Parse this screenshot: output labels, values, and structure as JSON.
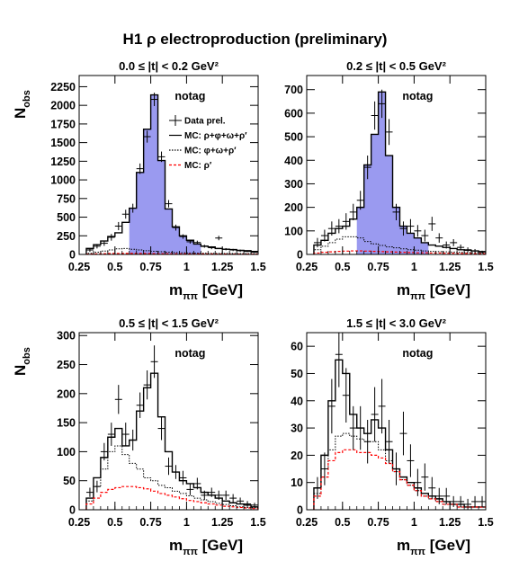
{
  "title": "H1 ρ electroproduction (preliminary)",
  "colors": {
    "fill": "#9a9af0",
    "mc_total": "#000000",
    "mc_bg": "#000000",
    "mc_rhoprime": "#ff0000",
    "data": "#000000"
  },
  "chart_data": [
    {
      "type": "histogram",
      "title": "0.0 ≤ |t| < 0.2 GeV²",
      "tag": "notag",
      "xlabel": "m_ππ [GeV]",
      "ylabel": "N_obs",
      "xlim": [
        0.25,
        1.5
      ],
      "ylim": [
        0,
        2400
      ],
      "xticks": [
        0.25,
        0.5,
        0.75,
        1,
        1.25,
        1.5
      ],
      "xtick_labels": [
        "0.25",
        "0.5",
        "0.75",
        "1",
        "1.25",
        "1.5"
      ],
      "yticks": [
        0,
        250,
        500,
        750,
        1000,
        1250,
        1500,
        1750,
        2000,
        2250
      ],
      "legend": {
        "entries": [
          {
            "label": "Data prel.",
            "style": "cross"
          },
          {
            "label": "MC: ρ+φ+ω+ρ′",
            "style": "solid-black"
          },
          {
            "label": "MC: φ+ω+ρ′",
            "style": "dotted-black"
          },
          {
            "label": "MC: ρ′",
            "style": "dashed-red"
          }
        ]
      },
      "bin_width": 0.05,
      "bin_starts": [
        0.3,
        0.35,
        0.4,
        0.45,
        0.5,
        0.55,
        0.6,
        0.65,
        0.7,
        0.75,
        0.8,
        0.85,
        0.9,
        0.95,
        1.0,
        1.05,
        1.1,
        1.15,
        1.2,
        1.25,
        1.3,
        1.35,
        1.4,
        1.45
      ],
      "series": [
        {
          "name": "MC: ρ+φ+ω+ρ′",
          "role": "total",
          "values": [
            80,
            130,
            180,
            240,
            290,
            430,
            620,
            1100,
            1680,
            2140,
            1260,
            610,
            370,
            250,
            190,
            140,
            110,
            100,
            80,
            70,
            65,
            55,
            50,
            40
          ]
        },
        {
          "name": "MC: φ+ω+ρ′",
          "role": "background",
          "values": [
            15,
            30,
            45,
            60,
            75,
            80,
            70,
            60,
            50,
            42,
            36,
            30,
            26,
            22,
            20,
            18,
            16,
            15,
            14,
            13,
            12,
            11,
            10,
            9
          ]
        },
        {
          "name": "MC: ρ′",
          "role": "rhoprime",
          "values": [
            5,
            8,
            10,
            12,
            13,
            14,
            14,
            13,
            12,
            11,
            10,
            9,
            8,
            8,
            7,
            7,
            6,
            6,
            5,
            5,
            4,
            4,
            3,
            3
          ]
        }
      ],
      "fill_range": [
        0.6,
        1.1
      ],
      "data": {
        "name": "Data prel.",
        "x": [
          0.325,
          0.375,
          0.425,
          0.475,
          0.525,
          0.575,
          0.625,
          0.675,
          0.725,
          0.775,
          0.825,
          0.875,
          0.925,
          0.975,
          1.025,
          1.075,
          1.125,
          1.175,
          1.225,
          1.275,
          1.325,
          1.375,
          1.425,
          1.475
        ],
        "y": [
          60,
          110,
          150,
          230,
          380,
          540,
          620,
          1150,
          1580,
          2080,
          1310,
          680,
          360,
          240,
          170,
          160,
          110,
          90,
          220,
          70,
          60,
          50,
          40,
          30
        ],
        "err": [
          25,
          30,
          35,
          45,
          55,
          60,
          60,
          70,
          80,
          90,
          70,
          50,
          40,
          30,
          25,
          25,
          20,
          20,
          30,
          15,
          15,
          15,
          10,
          10
        ]
      }
    },
    {
      "type": "histogram",
      "title": "0.2 ≤ |t| < 0.5 GeV²",
      "tag": "notag",
      "xlabel": "m_ππ [GeV]",
      "ylabel": "",
      "xlim": [
        0.25,
        1.5
      ],
      "ylim": [
        0,
        760
      ],
      "xticks": [
        0.25,
        0.5,
        0.75,
        1,
        1.25,
        1.5
      ],
      "xtick_labels": [
        "0.25",
        "0.5",
        "0.75",
        "1",
        "1.25",
        "1.5"
      ],
      "yticks": [
        0,
        100,
        200,
        300,
        400,
        500,
        600,
        700
      ],
      "bin_width": 0.05,
      "bin_starts": [
        0.3,
        0.35,
        0.4,
        0.45,
        0.5,
        0.55,
        0.6,
        0.65,
        0.7,
        0.75,
        0.8,
        0.85,
        0.9,
        0.95,
        1.0,
        1.05,
        1.1,
        1.15,
        1.2,
        1.25,
        1.3,
        1.35,
        1.4,
        1.45
      ],
      "series": [
        {
          "name": "MC: ρ+φ+ω+ρ′",
          "role": "total",
          "values": [
            40,
            60,
            90,
            110,
            120,
            150,
            200,
            380,
            510,
            690,
            420,
            200,
            120,
            90,
            70,
            50,
            40,
            35,
            30,
            25,
            20,
            18,
            15,
            12
          ]
        },
        {
          "name": "MC: φ+ω+ρ′",
          "role": "background",
          "values": [
            20,
            35,
            50,
            65,
            75,
            75,
            70,
            55,
            45,
            38,
            32,
            28,
            24,
            20,
            18,
            15,
            13,
            12,
            11,
            10,
            9,
            8,
            7,
            6
          ]
        },
        {
          "name": "MC: ρ′",
          "role": "rhoprime",
          "values": [
            6,
            9,
            11,
            13,
            14,
            15,
            15,
            14,
            13,
            12,
            11,
            10,
            9,
            8,
            7,
            7,
            6,
            6,
            5,
            5,
            4,
            4,
            3,
            3
          ]
        }
      ],
      "fill_range": [
        0.6,
        1.1
      ],
      "data": {
        "name": "Data prel.",
        "x": [
          0.325,
          0.375,
          0.425,
          0.475,
          0.525,
          0.575,
          0.625,
          0.675,
          0.725,
          0.775,
          0.825,
          0.875,
          0.925,
          0.975,
          1.025,
          1.075,
          1.125,
          1.175,
          1.225,
          1.275,
          1.325,
          1.375,
          1.425,
          1.475
        ],
        "y": [
          50,
          80,
          110,
          120,
          140,
          180,
          230,
          370,
          590,
          640,
          520,
          180,
          110,
          120,
          100,
          80,
          130,
          70,
          40,
          50,
          30,
          20,
          15,
          10
        ],
        "err": [
          20,
          25,
          30,
          30,
          35,
          35,
          40,
          50,
          60,
          60,
          55,
          35,
          30,
          30,
          25,
          25,
          30,
          20,
          15,
          15,
          12,
          10,
          8,
          6
        ]
      }
    },
    {
      "type": "histogram",
      "title": "0.5 ≤ |t| < 1.5 GeV²",
      "tag": "notag",
      "xlabel": "m_ππ [GeV]",
      "ylabel": "N_obs",
      "xlim": [
        0.25,
        1.5
      ],
      "ylim": [
        0,
        305
      ],
      "xticks": [
        0.25,
        0.5,
        0.75,
        1,
        1.25,
        1.5
      ],
      "xtick_labels": [
        "0.25",
        "0.5",
        "0.75",
        "1",
        "1.25",
        "1.5"
      ],
      "yticks": [
        0,
        50,
        100,
        150,
        200,
        250,
        300
      ],
      "bin_width": 0.05,
      "bin_starts": [
        0.3,
        0.35,
        0.4,
        0.45,
        0.5,
        0.55,
        0.6,
        0.65,
        0.7,
        0.75,
        0.8,
        0.85,
        0.9,
        0.95,
        1.0,
        1.05,
        1.1,
        1.15,
        1.2,
        1.25,
        1.3,
        1.35,
        1.4,
        1.45
      ],
      "series": [
        {
          "name": "MC: ρ+φ+ω+ρ′",
          "role": "total",
          "values": [
            20,
            55,
            90,
            125,
            140,
            110,
            120,
            170,
            210,
            235,
            160,
            100,
            65,
            50,
            45,
            38,
            30,
            25,
            20,
            15,
            12,
            10,
            8,
            5
          ]
        },
        {
          "name": "MC: φ+ω+ρ′",
          "role": "background",
          "values": [
            15,
            40,
            70,
            100,
            110,
            95,
            80,
            70,
            55,
            50,
            42,
            38,
            32,
            28,
            24,
            20,
            17,
            14,
            11,
            9,
            7,
            5,
            4,
            3
          ]
        },
        {
          "name": "MC: ρ′",
          "role": "rhoprime",
          "values": [
            10,
            20,
            30,
            35,
            38,
            40,
            40,
            38,
            36,
            32,
            28,
            25,
            22,
            19,
            16,
            14,
            12,
            10,
            8,
            6,
            5,
            4,
            3,
            2
          ]
        }
      ],
      "data": {
        "name": "Data prel.",
        "x": [
          0.325,
          0.375,
          0.425,
          0.475,
          0.525,
          0.575,
          0.625,
          0.675,
          0.725,
          0.775,
          0.825,
          0.875,
          0.925,
          0.975,
          1.025,
          1.075,
          1.125,
          1.175,
          1.225,
          1.275,
          1.325,
          1.375,
          1.425,
          1.475
        ],
        "y": [
          30,
          40,
          100,
          130,
          190,
          130,
          120,
          180,
          215,
          255,
          140,
          75,
          65,
          55,
          35,
          45,
          25,
          30,
          25,
          25,
          20,
          15,
          10,
          8
        ],
        "err": [
          8,
          10,
          15,
          20,
          25,
          20,
          18,
          22,
          25,
          28,
          20,
          15,
          12,
          12,
          10,
          10,
          8,
          8,
          8,
          8,
          7,
          6,
          5,
          4
        ]
      }
    },
    {
      "type": "histogram",
      "title": "1.5 ≤ |t| < 3.0 GeV²",
      "tag": "notag",
      "xlabel": "m_ππ [GeV]",
      "ylabel": "",
      "xlim": [
        0.25,
        1.5
      ],
      "ylim": [
        0,
        65
      ],
      "xticks": [
        0.25,
        0.5,
        0.75,
        1,
        1.25,
        1.5
      ],
      "xtick_labels": [
        "0.25",
        "0.5",
        "0.75",
        "1",
        "1.25",
        "1.5"
      ],
      "yticks": [
        0,
        10,
        20,
        30,
        40,
        50,
        60
      ],
      "bin_width": 0.05,
      "bin_starts": [
        0.3,
        0.35,
        0.4,
        0.45,
        0.5,
        0.55,
        0.6,
        0.65,
        0.7,
        0.75,
        0.8,
        0.85,
        0.9,
        0.95,
        1.0,
        1.05,
        1.1,
        1.15,
        1.2,
        1.25,
        1.3,
        1.35,
        1.4,
        1.45
      ],
      "series": [
        {
          "name": "MC: ρ+φ+ω+ρ′",
          "role": "total",
          "values": [
            8,
            20,
            40,
            55,
            50,
            35,
            30,
            28,
            33,
            30,
            22,
            15,
            12,
            10,
            8,
            6,
            5,
            4,
            3,
            2,
            2,
            1,
            1,
            1
          ]
        },
        {
          "name": "MC: φ+ω+ρ′",
          "role": "background",
          "values": [
            6,
            15,
            22,
            27,
            28,
            27,
            26,
            25,
            25,
            22,
            18,
            14,
            11,
            9,
            7,
            5,
            4,
            3,
            2,
            2,
            1,
            1,
            1,
            1
          ]
        },
        {
          "name": "MC: ρ′",
          "role": "rhoprime",
          "values": [
            5,
            12,
            18,
            21,
            22,
            22,
            21,
            21,
            20,
            19,
            17,
            14,
            11,
            9,
            7,
            5,
            4,
            3,
            2,
            2,
            1,
            1,
            1,
            1
          ]
        }
      ],
      "data": {
        "name": "Data prel.",
        "x": [
          0.325,
          0.375,
          0.425,
          0.475,
          0.525,
          0.575,
          0.625,
          0.675,
          0.725,
          0.775,
          0.825,
          0.875,
          0.925,
          0.975,
          1.025,
          1.075,
          1.125,
          1.175,
          1.225,
          1.275,
          1.325,
          1.375,
          1.425,
          1.475
        ],
        "y": [
          8,
          15,
          38,
          57,
          42,
          30,
          30,
          25,
          35,
          38,
          25,
          15,
          28,
          18,
          10,
          12,
          8,
          5,
          5,
          3,
          3,
          2,
          3,
          3
        ],
        "err": [
          4,
          6,
          10,
          12,
          10,
          8,
          8,
          8,
          10,
          10,
          8,
          6,
          8,
          6,
          5,
          5,
          4,
          3,
          3,
          2,
          2,
          2,
          2,
          2
        ]
      }
    }
  ]
}
